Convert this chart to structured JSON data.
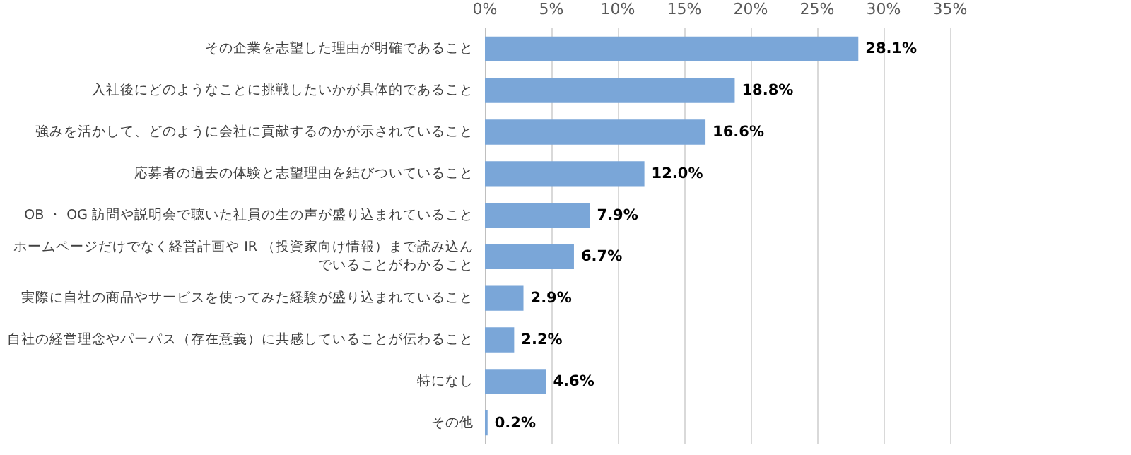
{
  "chart_data": {
    "type": "bar",
    "orientation": "horizontal",
    "categories": [
      "その企業を志望した理由が明確であること",
      "入社後にどのようなことに挑戦したいかが具体的であること",
      "強みを活かして、どのように会社に貢献するのかが示されていること",
      "応募者の過去の体験と志望理由を結びついていること",
      "OB ・ OG 訪問や説明会で聴いた社員の生の声が盛り込まれていること",
      "ホームページだけでなく経営計画や IR （投資家向け情報）まで読み込んでいることがわかること",
      "実際に自社の商品やサービスを使ってみた経験が盛り込まれていること",
      "自社の経営理念やパーパス（存在意義）に共感していることが伝わること",
      "特になし",
      "その他"
    ],
    "values": [
      28.1,
      18.8,
      16.6,
      12.0,
      7.9,
      6.7,
      2.9,
      2.2,
      4.6,
      0.2
    ],
    "value_labels": [
      "28.1%",
      "18.8%",
      "16.6%",
      "12.0%",
      "7.9%",
      "6.7%",
      "2.9%",
      "2.2%",
      "4.6%",
      "0.2%"
    ],
    "color": "#7aa6d8",
    "xlim": [
      0,
      35
    ],
    "xticks": [
      {
        "value": 0,
        "label": "0%"
      },
      {
        "value": 5,
        "label": "5%"
      },
      {
        "value": 10,
        "label": "10%"
      },
      {
        "value": 15,
        "label": "15%"
      },
      {
        "value": 20,
        "label": "20%"
      },
      {
        "value": 25,
        "label": "25%"
      },
      {
        "value": 30,
        "label": "30%"
      },
      {
        "value": 35,
        "label": "35%"
      }
    ],
    "grid": "x"
  }
}
